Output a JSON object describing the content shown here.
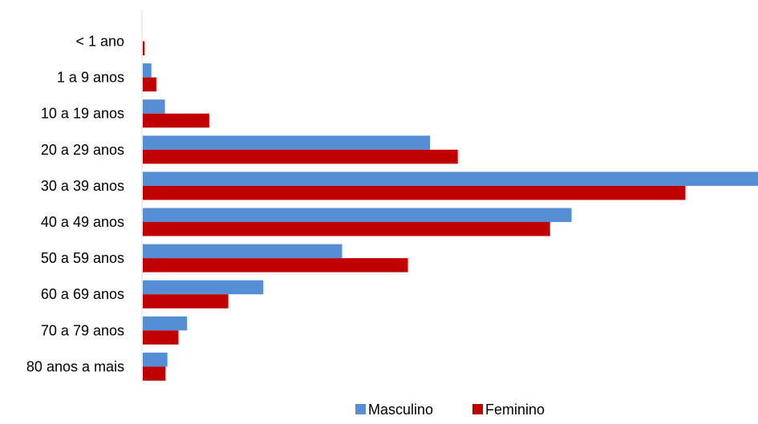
{
  "chart_data": {
    "type": "bar",
    "orientation": "horizontal",
    "categories": [
      "< 1 ano",
      "1 a 9 anos",
      "10 a 19 anos",
      "20 a 29 anos",
      "30 a 39 anos",
      "40 a 49 anos",
      "50 a 59 anos",
      "60 a 69 anos",
      "70 a 79 anos",
      "80 anos a mais"
    ],
    "series": [
      {
        "name": "Masculino",
        "color": "#558ED5",
        "values": [
          0,
          1.4,
          3.6,
          46.7,
          100,
          69.7,
          32.4,
          19.6,
          7.2,
          4.0
        ]
      },
      {
        "name": "Feminino",
        "color": "#C00000",
        "values": [
          0.3,
          2.2,
          10.8,
          51.2,
          88.2,
          66.2,
          43.1,
          13.9,
          5.8,
          3.7
        ]
      }
    ],
    "xlim": [
      0,
      100
    ],
    "grid": false,
    "x_axis_visible": false,
    "legend": {
      "position": "bottom",
      "entries": [
        "Masculino",
        "Feminino"
      ]
    },
    "title": "",
    "xlabel": "",
    "ylabel": ""
  }
}
